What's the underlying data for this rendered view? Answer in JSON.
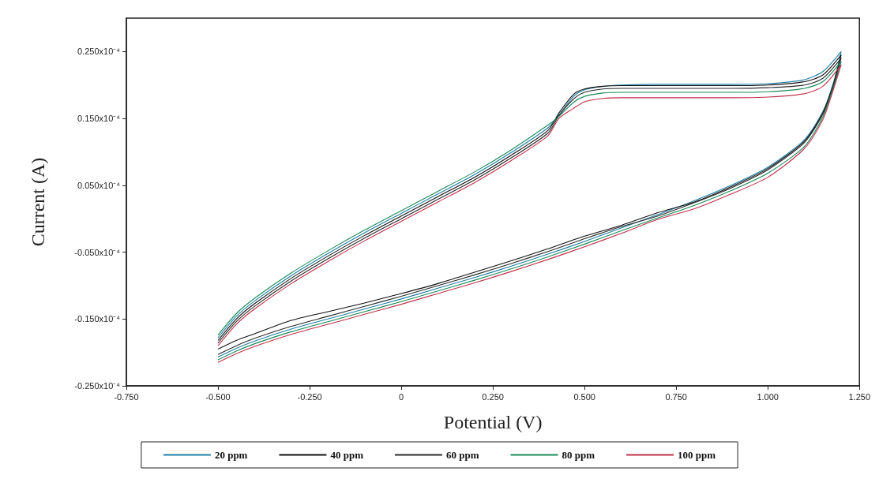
{
  "chart_data": {
    "type": "line",
    "xlabel": "Potential (V)",
    "ylabel": "Current (A)",
    "x": [
      -0.5,
      -0.45,
      -0.4,
      -0.3,
      -0.2,
      -0.1,
      0,
      0.1,
      0.2,
      0.3,
      0.4,
      0.43,
      0.47,
      0.5,
      0.55,
      0.6,
      0.7,
      0.8,
      0.9,
      1.0,
      1.1,
      1.15,
      1.2,
      1.18,
      1.15,
      1.1,
      1.0,
      0.9,
      0.8,
      0.7,
      0.6,
      0.5,
      0.4,
      0.3,
      0.2,
      0.1,
      0,
      -0.1,
      -0.2,
      -0.3,
      -0.4,
      -0.45,
      -0.5
    ],
    "series": [
      {
        "name": "20 ppm",
        "color": "#1f7fa8",
        "values": [
          -1.78e-05,
          -1.46e-05,
          -1.23e-05,
          -8.5e-06,
          -5.2e-06,
          -2.1e-06,
          8e-07,
          3.7e-06,
          6.6e-06,
          9.9e-06,
          1.36e-05,
          1.55e-05,
          1.83e-05,
          1.93e-05,
          1.98e-05,
          2e-05,
          2.01e-05,
          2.01e-05,
          2.01e-05,
          2.02e-05,
          2.08e-05,
          2.2e-05,
          2.5e-05,
          2.05e-05,
          1.6e-05,
          1.18e-05,
          7.7e-06,
          5e-06,
          2.7e-06,
          6e-07,
          -1.4e-06,
          -3.4e-06,
          -5.3e-06,
          -7.1e-06,
          -8.8e-06,
          -1.04e-05,
          -1.2e-05,
          -1.35e-05,
          -1.5e-05,
          -1.65e-05,
          -1.83e-05,
          -1.94e-05,
          -2.07e-05
        ]
      },
      {
        "name": "40 ppm",
        "color": "#111111",
        "values": [
          -1.82e-05,
          -1.5e-05,
          -1.27e-05,
          -8.9e-06,
          -5.6e-06,
          -2.5e-06,
          4e-07,
          3.3e-06,
          6.2e-06,
          9.5e-06,
          1.32e-05,
          1.58e-05,
          1.86e-05,
          1.94e-05,
          1.98e-05,
          1.99e-05,
          1.99e-05,
          1.99e-05,
          1.99e-05,
          2e-05,
          2.05e-05,
          2.15e-05,
          2.45e-05,
          2.03e-05,
          1.58e-05,
          1.16e-05,
          7.5e-06,
          4.8e-06,
          2.5e-06,
          9e-07,
          -1e-06,
          -2.6e-06,
          -4.5e-06,
          -6.3e-06,
          -8e-06,
          -9.7e-06,
          -1.12e-05,
          -1.26e-05,
          -1.39e-05,
          -1.52e-05,
          -1.72e-05,
          -1.82e-05,
          -1.95e-05
        ]
      },
      {
        "name": "60 ppm",
        "color": "#2a2a2a",
        "values": [
          -1.86e-05,
          -1.54e-05,
          -1.31e-05,
          -9.3e-06,
          -6e-06,
          -2.9e-06,
          0.0,
          2.9e-06,
          5.8e-06,
          9.1e-06,
          1.28e-05,
          1.54e-05,
          1.79e-05,
          1.89e-05,
          1.94e-05,
          1.95e-05,
          1.95e-05,
          1.95e-05,
          1.95e-05,
          1.96e-05,
          2e-05,
          2.1e-05,
          2.4e-05,
          2e-05,
          1.56e-05,
          1.14e-05,
          7.3e-06,
          4.6e-06,
          2.4e-06,
          4e-07,
          -1.2e-06,
          -3e-06,
          -4.9e-06,
          -6.7e-06,
          -8.4e-06,
          -1e-05,
          -1.16e-05,
          -1.31e-05,
          -1.46e-05,
          -1.61e-05,
          -1.79e-05,
          -1.9e-05,
          -2.03e-05
        ]
      },
      {
        "name": "80 ppm",
        "color": "#1a8a5a",
        "values": [
          -1.74e-05,
          -1.42e-05,
          -1.19e-05,
          -8.1e-06,
          -4.8e-06,
          -1.7e-06,
          1.2e-06,
          4.1e-06,
          7e-06,
          1.03e-05,
          1.4e-05,
          1.53e-05,
          1.74e-05,
          1.83e-05,
          1.88e-05,
          1.89e-05,
          1.89e-05,
          1.89e-05,
          1.89e-05,
          1.9e-05,
          1.95e-05,
          2.05e-05,
          2.35e-05,
          1.98e-05,
          1.52e-05,
          1.08e-05,
          6.8e-06,
          4.2e-06,
          2e-06,
          1e-07,
          -1.8e-06,
          -3.8e-06,
          -5.7e-06,
          -7.5e-06,
          -9.2e-06,
          -1.08e-05,
          -1.24e-05,
          -1.39e-05,
          -1.54e-05,
          -1.69e-05,
          -1.87e-05,
          -1.98e-05,
          -2.11e-05
        ]
      },
      {
        "name": "100 ppm",
        "color": "#c0304a",
        "values": [
          -1.9e-05,
          -1.58e-05,
          -1.35e-05,
          -9.7e-06,
          -6.4e-06,
          -3.3e-06,
          -4e-07,
          2.5e-06,
          5.4e-06,
          8.7e-06,
          1.24e-05,
          1.5e-05,
          1.65e-05,
          1.75e-05,
          1.8e-05,
          1.81e-05,
          1.81e-05,
          1.81e-05,
          1.81e-05,
          1.82e-05,
          1.87e-05,
          1.98e-05,
          2.3e-05,
          1.95e-05,
          1.48e-05,
          1.05e-05,
          6.2e-06,
          3.7e-06,
          1.5e-06,
          -1e-07,
          -2.2e-06,
          -4.2e-06,
          -6.1e-06,
          -7.9e-06,
          -9.6e-06,
          -1.12e-05,
          -1.28e-05,
          -1.43e-05,
          -1.58e-05,
          -1.73e-05,
          -1.91e-05,
          -2.02e-05,
          -2.15e-05
        ]
      }
    ],
    "xlim": [
      -0.75,
      1.25
    ],
    "xticks": [
      {
        "value": -0.75,
        "label": "-0.750"
      },
      {
        "value": -0.5,
        "label": "-0.500"
      },
      {
        "value": -0.25,
        "label": "-0.250"
      },
      0,
      {
        "value": 0.25,
        "label": "0.250"
      },
      {
        "value": 0.5,
        "label": "0.500"
      },
      {
        "value": 0.75,
        "label": "0.750"
      },
      {
        "value": 1,
        "label": "1.000"
      },
      {
        "value": 1.25,
        "label": "1.250"
      }
    ],
    "ylim": [
      -2.5e-05,
      3e-05
    ],
    "yticks": [
      {
        "value": -2.5e-05,
        "label": "-0.250x10⁻⁴"
      },
      {
        "value": -1.5e-05,
        "label": "-0.150x10⁻⁴"
      },
      {
        "value": -5e-06,
        "label": "-0.050x10⁻⁴"
      },
      {
        "value": 5e-06,
        "label": "0.050x10⁻⁴"
      },
      {
        "value": 1.5e-05,
        "label": "0.150x10⁻⁴"
      },
      {
        "value": 2.5e-05,
        "label": "0.250x10⁻⁴"
      }
    ],
    "grid": false,
    "legend": "bottom",
    "marker": "none",
    "line_style": "solid"
  }
}
